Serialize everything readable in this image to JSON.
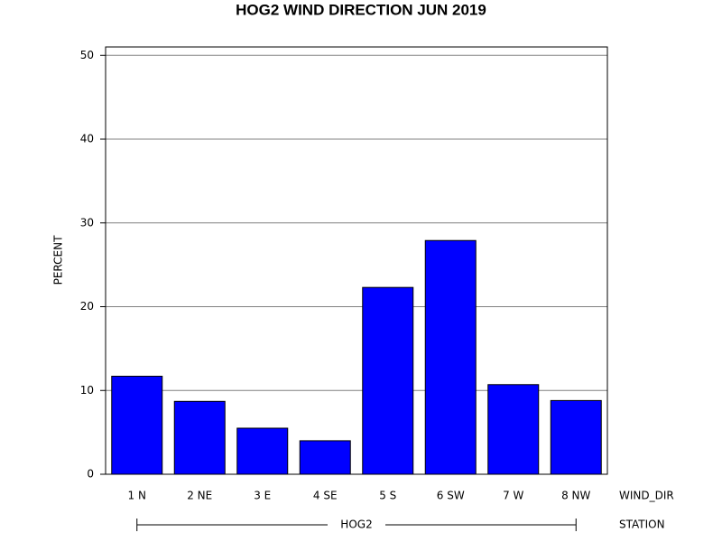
{
  "chart_data": {
    "type": "bar",
    "title": "HOG2 WIND DIRECTION JUN 2019",
    "y_label": "PERCENT",
    "x_label": "WIND_DIR",
    "group_label": "STATION",
    "group": "HOG2",
    "categories": [
      "1 N",
      "2 NE",
      "3 E",
      "4 SE",
      "5 S",
      "6 SW",
      "7 W",
      "8 NW"
    ],
    "values": [
      11.7,
      8.7,
      5.5,
      4.0,
      22.3,
      27.9,
      10.7,
      8.8
    ],
    "color": "#0000ff",
    "ylim": [
      0,
      51
    ],
    "yticks": [
      0,
      10,
      20,
      30,
      40,
      50
    ],
    "grid": true
  }
}
